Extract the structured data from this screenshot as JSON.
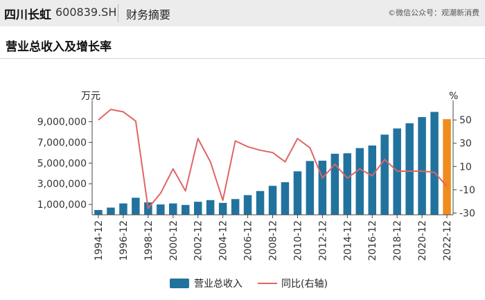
{
  "header": {
    "stock_name": "四川长虹",
    "stock_code": "600839.SH",
    "tab": "财务摘要",
    "watermark": "©微信公众号：观潮新消费"
  },
  "section": {
    "title": "营业总收入及增长率"
  },
  "colors": {
    "bar": "#21739d",
    "bar_highlight": "#f08c1e",
    "line": "#e06464",
    "axis": "#444444"
  },
  "chart_data": {
    "type": "bar",
    "categories": [
      "1994-12",
      "1995-12",
      "1996-12",
      "1997-12",
      "1998-12",
      "1999-12",
      "2000-12",
      "2001-12",
      "2002-12",
      "2003-12",
      "2004-12",
      "2005-12",
      "2006-12",
      "2007-12",
      "2008-12",
      "2009-12",
      "2010-12",
      "2011-12",
      "2012-12",
      "2013-12",
      "2014-12",
      "2015-12",
      "2016-12",
      "2017-12",
      "2018-12",
      "2019-12",
      "2020-12",
      "2021-12",
      "2022-12"
    ],
    "tick_labels": [
      "1994-12",
      "1996-12",
      "1998-12",
      "2000-12",
      "2002-12",
      "2004-12",
      "2006-12",
      "2008-12",
      "2010-12",
      "2012-12",
      "2014-12",
      "2016-12",
      "2018-12",
      "2020-12",
      "2022-12"
    ],
    "series": [
      {
        "name": "营业总收入",
        "axis": "left",
        "values": [
          460000,
          700000,
          1100000,
          1650000,
          1200000,
          1000000,
          1100000,
          950000,
          1260000,
          1420000,
          1150000,
          1520000,
          1900000,
          2300000,
          2800000,
          3150000,
          4200000,
          5200000,
          5230000,
          5900000,
          5950000,
          6450000,
          6700000,
          7750000,
          8350000,
          8850000,
          9450000,
          9950000,
          9250000
        ]
      },
      {
        "name": "同比(右轴)",
        "axis": "right",
        "values": [
          50,
          59,
          57,
          49,
          -26,
          -13,
          8,
          -11,
          34,
          14,
          -19,
          32,
          27,
          24,
          22,
          14,
          34,
          26,
          0,
          12,
          0,
          8,
          2,
          16,
          6,
          6,
          6,
          5,
          -7
        ]
      }
    ],
    "y_left": {
      "label": "万元",
      "ticks": [
        1000000,
        3000000,
        5000000,
        7000000,
        9000000
      ],
      "tick_labels": [
        "1,000,000",
        "3,000,000",
        "5,000,000",
        "7,000,000",
        "9,000,000"
      ],
      "range": [
        0,
        10520000
      ]
    },
    "y_right": {
      "label": "%",
      "ticks": [
        -30,
        -10,
        10,
        30,
        50
      ],
      "tick_labels": [
        "-30",
        "-10",
        "10",
        "30",
        "50"
      ],
      "range": [
        -31.5,
        62
      ]
    },
    "highlight_last_bar": true,
    "legend_position": "bottom-center",
    "grid": false
  }
}
